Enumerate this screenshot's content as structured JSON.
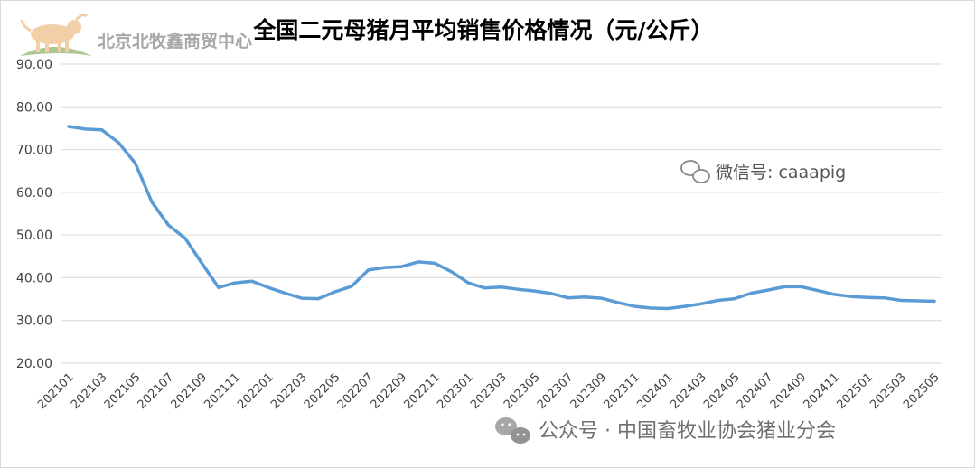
{
  "watermark": {
    "text": "北京北牧鑫商贸中心",
    "icon": "bull-logo"
  },
  "wechat": {
    "text": "微信号: caaapig",
    "icon": "wechat-icon"
  },
  "footer": {
    "text": "公众号 · 中国畜牧业协会猪业分会",
    "icon": "wechat-icon"
  },
  "colors": {
    "series": "#5b9bd5",
    "grid": "#d9d9d9",
    "text": "#404040"
  },
  "chart_data": {
    "type": "line",
    "title": "全国二元母猪月平均销售价格情况（元/公斤）",
    "xlabel": "",
    "ylabel": "",
    "ylim": [
      20,
      90
    ],
    "yticks": [
      "20.00",
      "30.00",
      "40.00",
      "50.00",
      "60.00",
      "70.00",
      "80.00",
      "90.00"
    ],
    "grid": true,
    "x": [
      "202101",
      "202102",
      "202103",
      "202104",
      "202105",
      "202106",
      "202107",
      "202108",
      "202109",
      "202110",
      "202111",
      "202112",
      "202201",
      "202202",
      "202203",
      "202204",
      "202205",
      "202206",
      "202207",
      "202208",
      "202209",
      "202210",
      "202211",
      "202212",
      "202301",
      "202302",
      "202303",
      "202304",
      "202305",
      "202306",
      "202307",
      "202308",
      "202309",
      "202310",
      "202311",
      "202312",
      "202401",
      "202402",
      "202403",
      "202404",
      "202405",
      "202406",
      "202407",
      "202408",
      "202409",
      "202410",
      "202411",
      "202412",
      "202501",
      "202502",
      "202503",
      "202504",
      "202505"
    ],
    "xtick_labels": [
      "202101",
      "202103",
      "202105",
      "202107",
      "202109",
      "202111",
      "202201",
      "202203",
      "202205",
      "202207",
      "202209",
      "202211",
      "202301",
      "202303",
      "202305",
      "202307",
      "202309",
      "202311",
      "202401",
      "202403",
      "202405",
      "202407",
      "202409",
      "202411",
      "202501",
      "202503",
      "202505"
    ],
    "series": [
      {
        "values": [
          75.4,
          74.8,
          74.6,
          71.6,
          66.8,
          57.7,
          52.3,
          49.2,
          43.4,
          37.7,
          38.8,
          39.2,
          37.7,
          36.4,
          35.2,
          35.1,
          36.7,
          38.0,
          41.8,
          42.4,
          42.6,
          43.7,
          43.4,
          41.4,
          38.8,
          37.6,
          37.8,
          37.3,
          36.9,
          36.3,
          35.3,
          35.5,
          35.2,
          34.2,
          33.3,
          32.9,
          32.8,
          33.3,
          33.9,
          34.7,
          35.1,
          36.4,
          37.1,
          37.9,
          37.9,
          37.0,
          36.1,
          35.6,
          35.4,
          35.3,
          34.7,
          34.6,
          34.5
        ]
      }
    ]
  }
}
